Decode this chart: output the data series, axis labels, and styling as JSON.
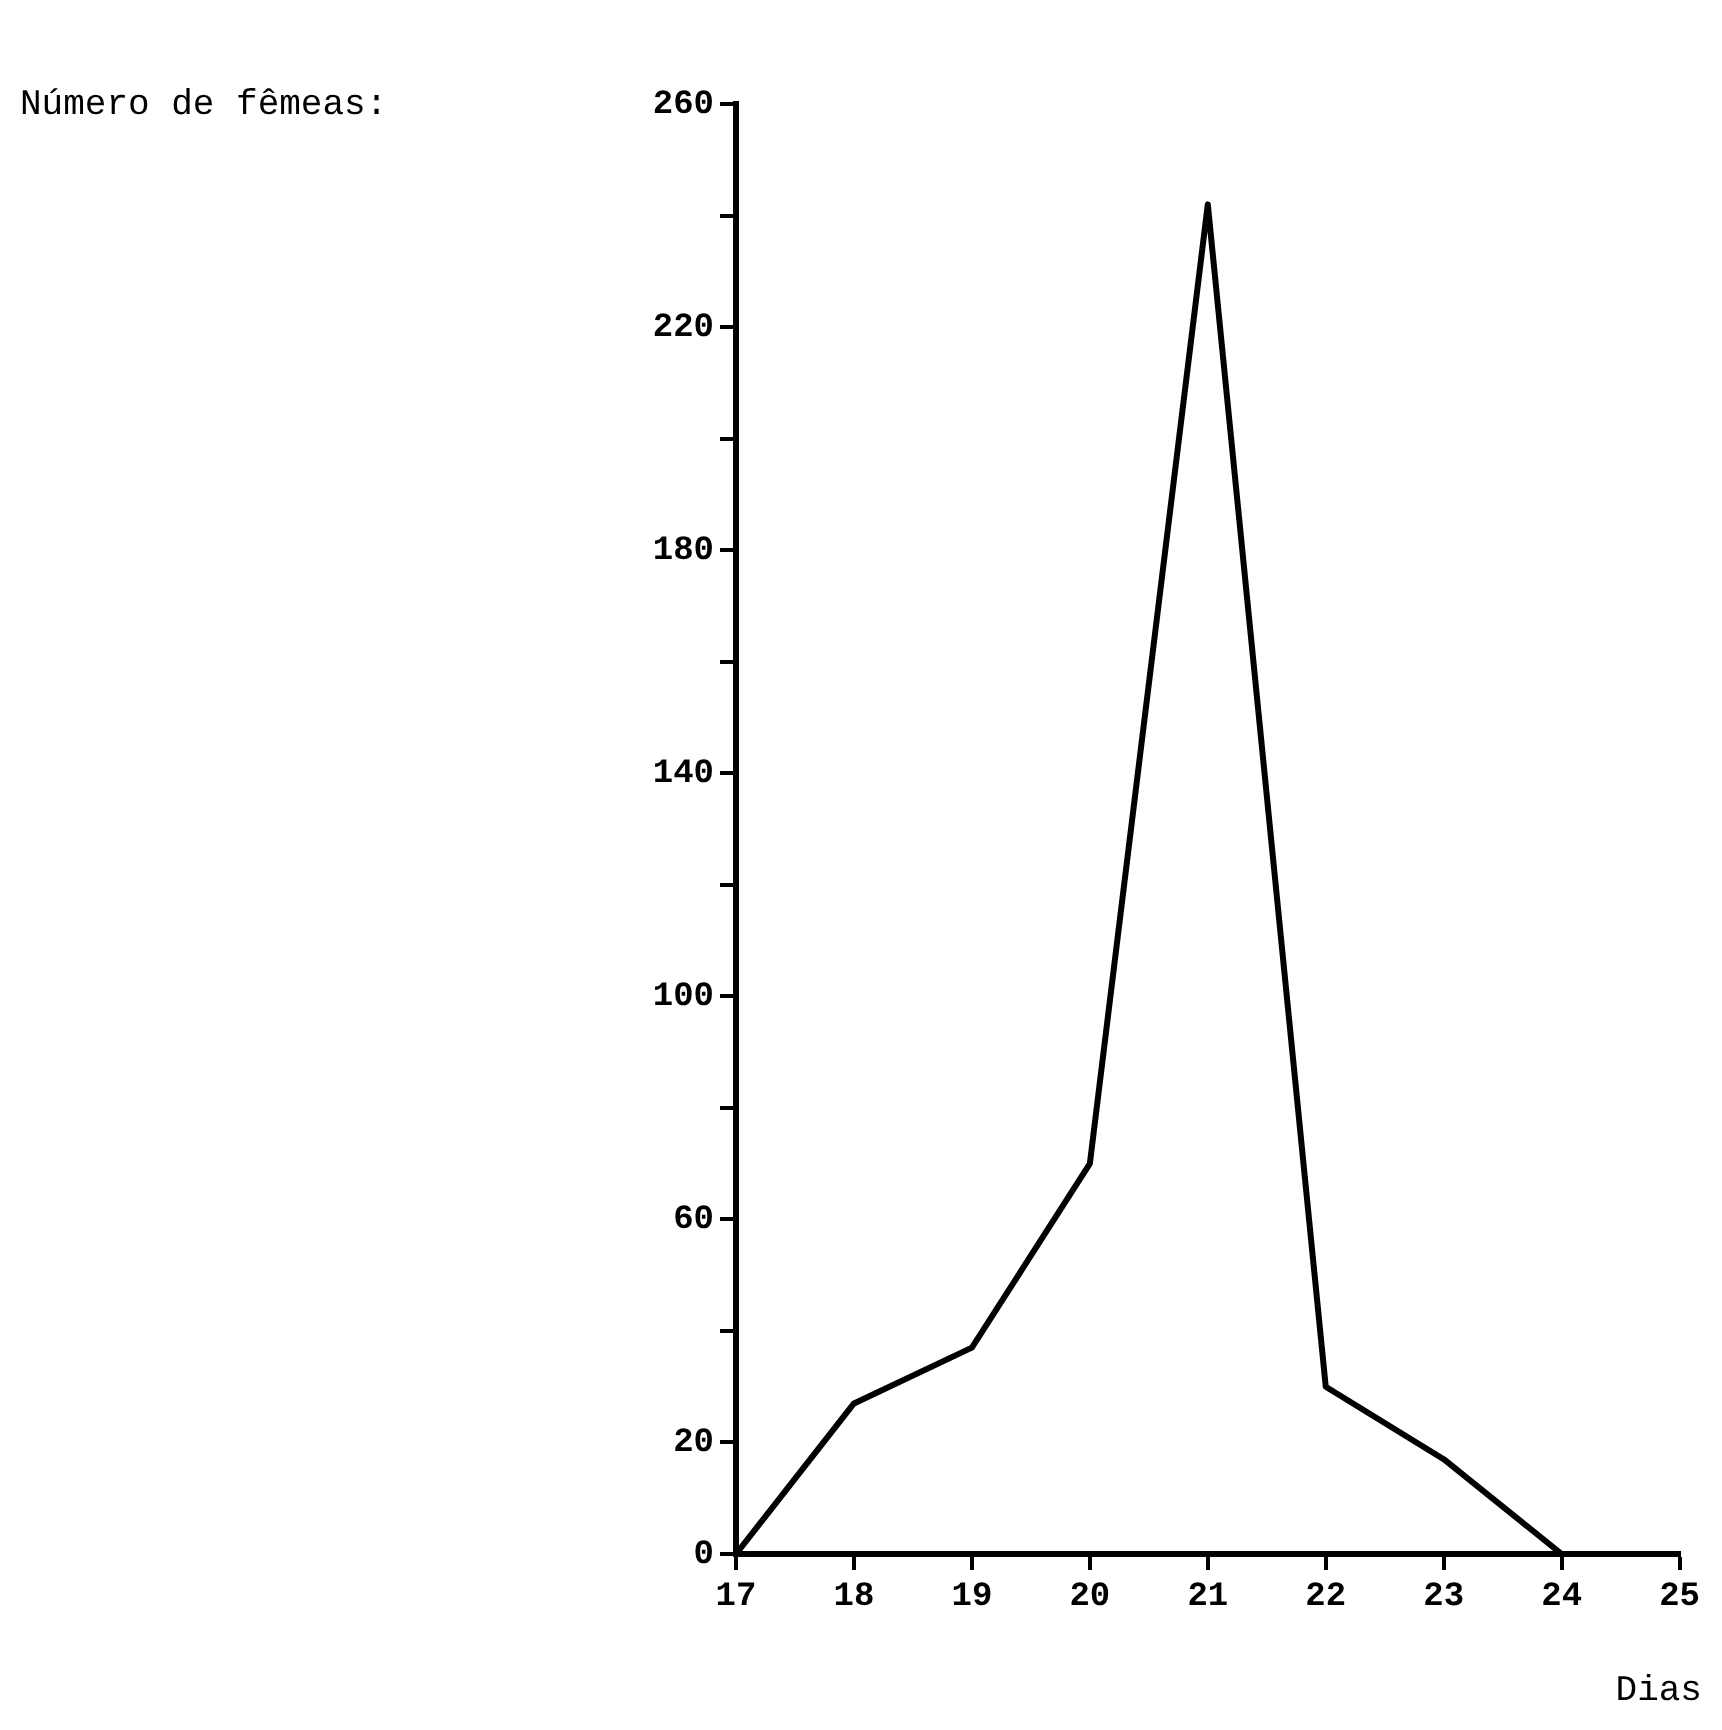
{
  "chart_data": {
    "type": "line",
    "xlabel": "Dias",
    "annotations": [
      "Número de fêmeas:"
    ],
    "x": [
      17,
      18,
      19,
      20,
      21,
      22,
      23,
      24
    ],
    "series": [
      {
        "color": "#000000",
        "values": [
          0,
          27,
          37,
          70,
          242,
          30,
          17,
          0
        ]
      }
    ],
    "xlim": [
      17,
      25
    ],
    "xticks": [
      17,
      18,
      19,
      20,
      21,
      22,
      23,
      24,
      25
    ],
    "ylim": [
      0,
      260
    ],
    "yticks": [
      0,
      20,
      {
        "value": 40,
        "label": null
      },
      60,
      {
        "value": 80,
        "label": null
      },
      100,
      {
        "value": 120,
        "label": null
      },
      140,
      {
        "value": 160,
        "label": null
      },
      180,
      {
        "value": 200,
        "label": null
      },
      220,
      {
        "value": 240,
        "label": null
      },
      260
    ],
    "grid": false,
    "legend": false,
    "marker": "none",
    "line_style": "solid"
  }
}
